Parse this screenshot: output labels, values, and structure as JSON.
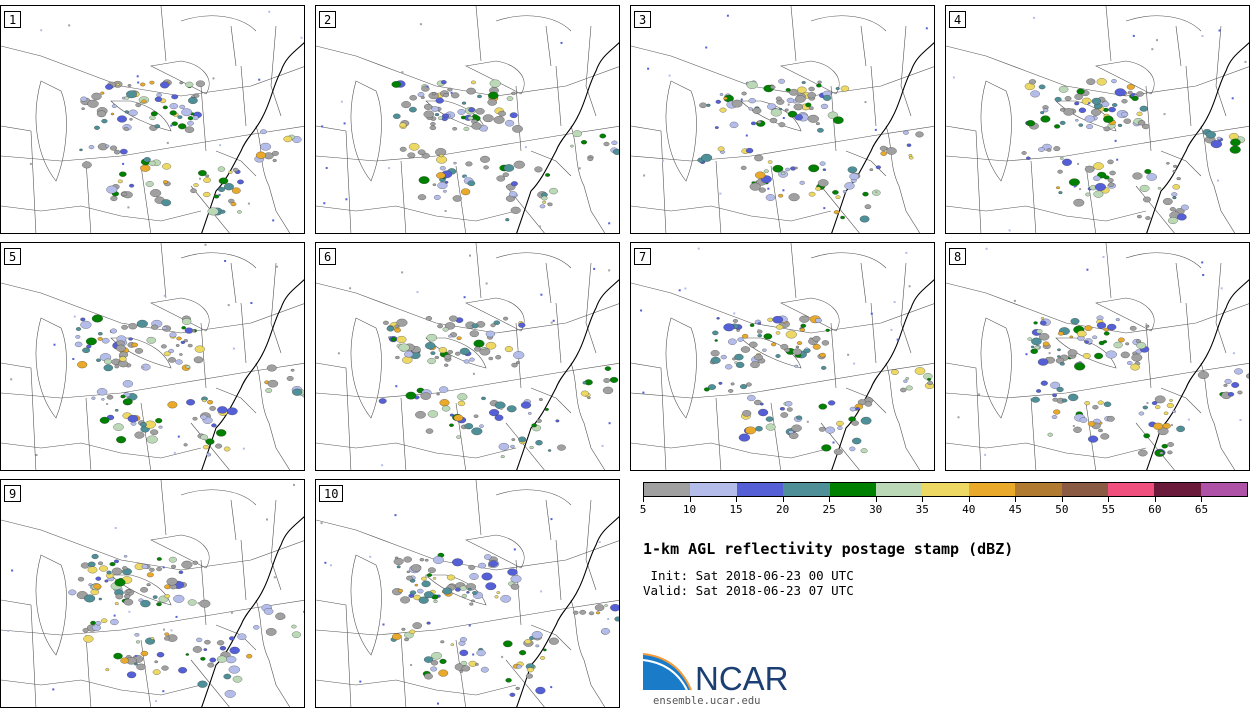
{
  "panels": [
    {
      "label": "1",
      "seed": 11
    },
    {
      "label": "2",
      "seed": 23
    },
    {
      "label": "3",
      "seed": 37
    },
    {
      "label": "4",
      "seed": 41
    },
    {
      "label": "5",
      "seed": 53
    },
    {
      "label": "6",
      "seed": 67
    },
    {
      "label": "7",
      "seed": 71
    },
    {
      "label": "8",
      "seed": 83
    },
    {
      "label": "9",
      "seed": 97
    },
    {
      "label": "10",
      "seed": 101
    }
  ],
  "colorbar": {
    "colors": [
      "#a0a0a0",
      "#b4bdea",
      "#5560d6",
      "#4e8f98",
      "#008000",
      "#bcd9b7",
      "#ecd863",
      "#e9a92a",
      "#b07a30",
      "#8a5a42",
      "#ef507d",
      "#6a1a3a",
      "#ad52a6"
    ],
    "tick_values": [
      "5",
      "10",
      "15",
      "20",
      "25",
      "30",
      "35",
      "40",
      "45",
      "50",
      "55",
      "60",
      "65"
    ]
  },
  "title": "1-km AGL reflectivity postage stamp (dBZ)",
  "init_line": " Init: Sat 2018-06-23 00 UTC",
  "valid_line": "Valid: Sat 2018-06-23 07 UTC",
  "logo_text": "NCAR",
  "logo_url": "ensemble.ucar.edu"
}
